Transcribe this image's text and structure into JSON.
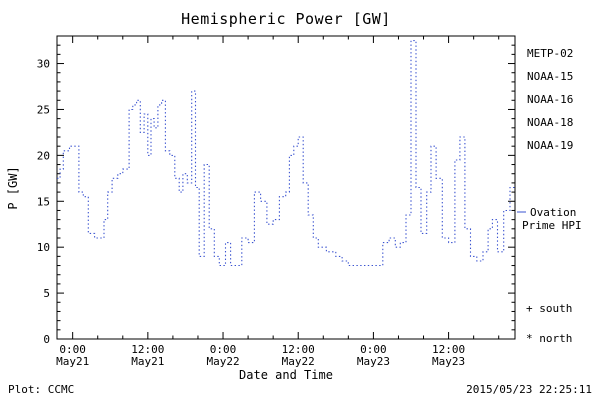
{
  "window_title": "Hemispheric Power [GW]",
  "colors": {
    "line": "#3a53d0",
    "black": "#000000",
    "cyan": "#00c0cc",
    "green": "#40c878",
    "orange": "#e8a44c"
  },
  "legend": {
    "satellites": [
      {
        "label": "METP-02",
        "color": "#000000"
      },
      {
        "label": "NOAA-15",
        "color": "#2c46cc"
      },
      {
        "label": "NOAA-16",
        "color": "#00c0cc"
      },
      {
        "label": "NOAA-18",
        "color": "#40c878"
      },
      {
        "label": "NOAA-19",
        "color": "#e8a44c"
      }
    ],
    "ovation_line1": "Ovation",
    "ovation_line2": "Prime HPI",
    "south": "+ south",
    "north": "* north"
  },
  "footer": {
    "left": "Plot: CCMC",
    "right": "2015/05/23 22:25:11"
  },
  "chart_data": {
    "type": "line",
    "line_style": "dotted-step",
    "title": "Hemispheric Power [GW]",
    "xlabel": "Date and Time",
    "ylabel": "P [GW]",
    "ylim": [
      0,
      33
    ],
    "yticks": [
      0,
      5,
      10,
      15,
      20,
      25,
      30
    ],
    "xlim_hours": [
      -2.5,
      70.6
    ],
    "xticks": [
      {
        "hour": 0,
        "time": "0:00",
        "date": "May21"
      },
      {
        "hour": 12,
        "time": "12:00",
        "date": "May21"
      },
      {
        "hour": 24,
        "time": "0:00",
        "date": "May22"
      },
      {
        "hour": 36,
        "time": "12:00",
        "date": "May22"
      },
      {
        "hour": 48,
        "time": "0:00",
        "date": "May23"
      },
      {
        "hour": 60,
        "time": "12:00",
        "date": "May23"
      }
    ],
    "series_name": "Ovation Prime HPI (NOAA-15)",
    "x_hours": [
      -2.5,
      -2.0,
      -1.5,
      -0.5,
      1.0,
      1.7,
      2.5,
      3.5,
      5.0,
      5.6,
      6.3,
      7.2,
      8.0,
      9.0,
      9.6,
      10.2,
      10.8,
      11.4,
      12.0,
      12.5,
      13.0,
      13.6,
      14.2,
      14.8,
      15.5,
      16.3,
      17.0,
      17.6,
      18.3,
      19.0,
      19.6,
      20.2,
      21.0,
      21.8,
      22.6,
      23.4,
      24.4,
      25.2,
      27.0,
      28.0,
      29.0,
      30.0,
      31.0,
      32.0,
      33.0,
      34.0,
      34.6,
      35.3,
      36.0,
      36.8,
      37.6,
      38.4,
      39.2,
      40.5,
      42.0,
      43.0,
      44.0,
      49.5,
      50.5,
      51.5,
      52.3,
      53.2,
      54.0,
      54.8,
      55.6,
      56.5,
      57.2,
      58.0,
      59.0,
      60.0,
      61.0,
      61.8,
      62.6,
      63.5,
      64.5,
      65.5,
      66.3,
      67.0,
      67.8,
      68.8,
      69.8,
      70.6
    ],
    "values_gw": [
      17.5,
      18.5,
      20.5,
      21,
      16,
      15.5,
      11.5,
      11,
      13,
      16,
      17.5,
      18,
      18.5,
      25,
      25.5,
      26,
      22.5,
      24.5,
      20,
      24,
      23,
      25.5,
      26,
      20.5,
      20,
      17.5,
      16,
      18,
      17,
      27,
      16.5,
      9,
      19,
      12,
      9,
      8,
      10.5,
      8,
      11,
      10.5,
      16,
      15,
      12.5,
      13,
      15.5,
      16,
      20,
      21,
      22,
      17,
      13.5,
      11,
      10,
      9.5,
      9,
      8.5,
      8,
      10.5,
      11,
      10,
      10.5,
      13.5,
      32.5,
      16.5,
      11.5,
      16,
      21,
      17.5,
      11,
      10.5,
      19.5,
      22,
      12,
      9,
      8.5,
      9.5,
      12,
      13,
      9.5,
      14,
      16.5,
      16.5
    ]
  }
}
